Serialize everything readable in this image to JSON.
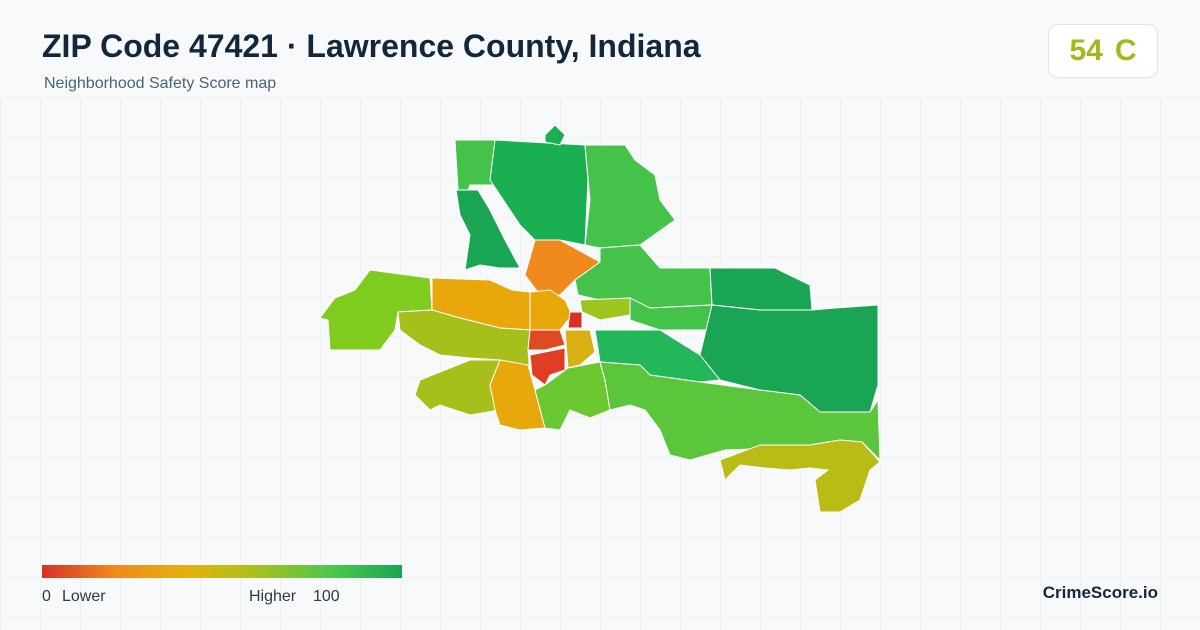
{
  "header": {
    "title": "ZIP Code 47421 · Lawrence County, Indiana",
    "subtitle": "Neighborhood Safety Score map"
  },
  "score": {
    "value": 54,
    "grade": "C"
  },
  "legend": {
    "min": 0,
    "min_label": "Lower",
    "max_label": "Higher",
    "max": 100
  },
  "brand": "CrimeScore.io"
}
